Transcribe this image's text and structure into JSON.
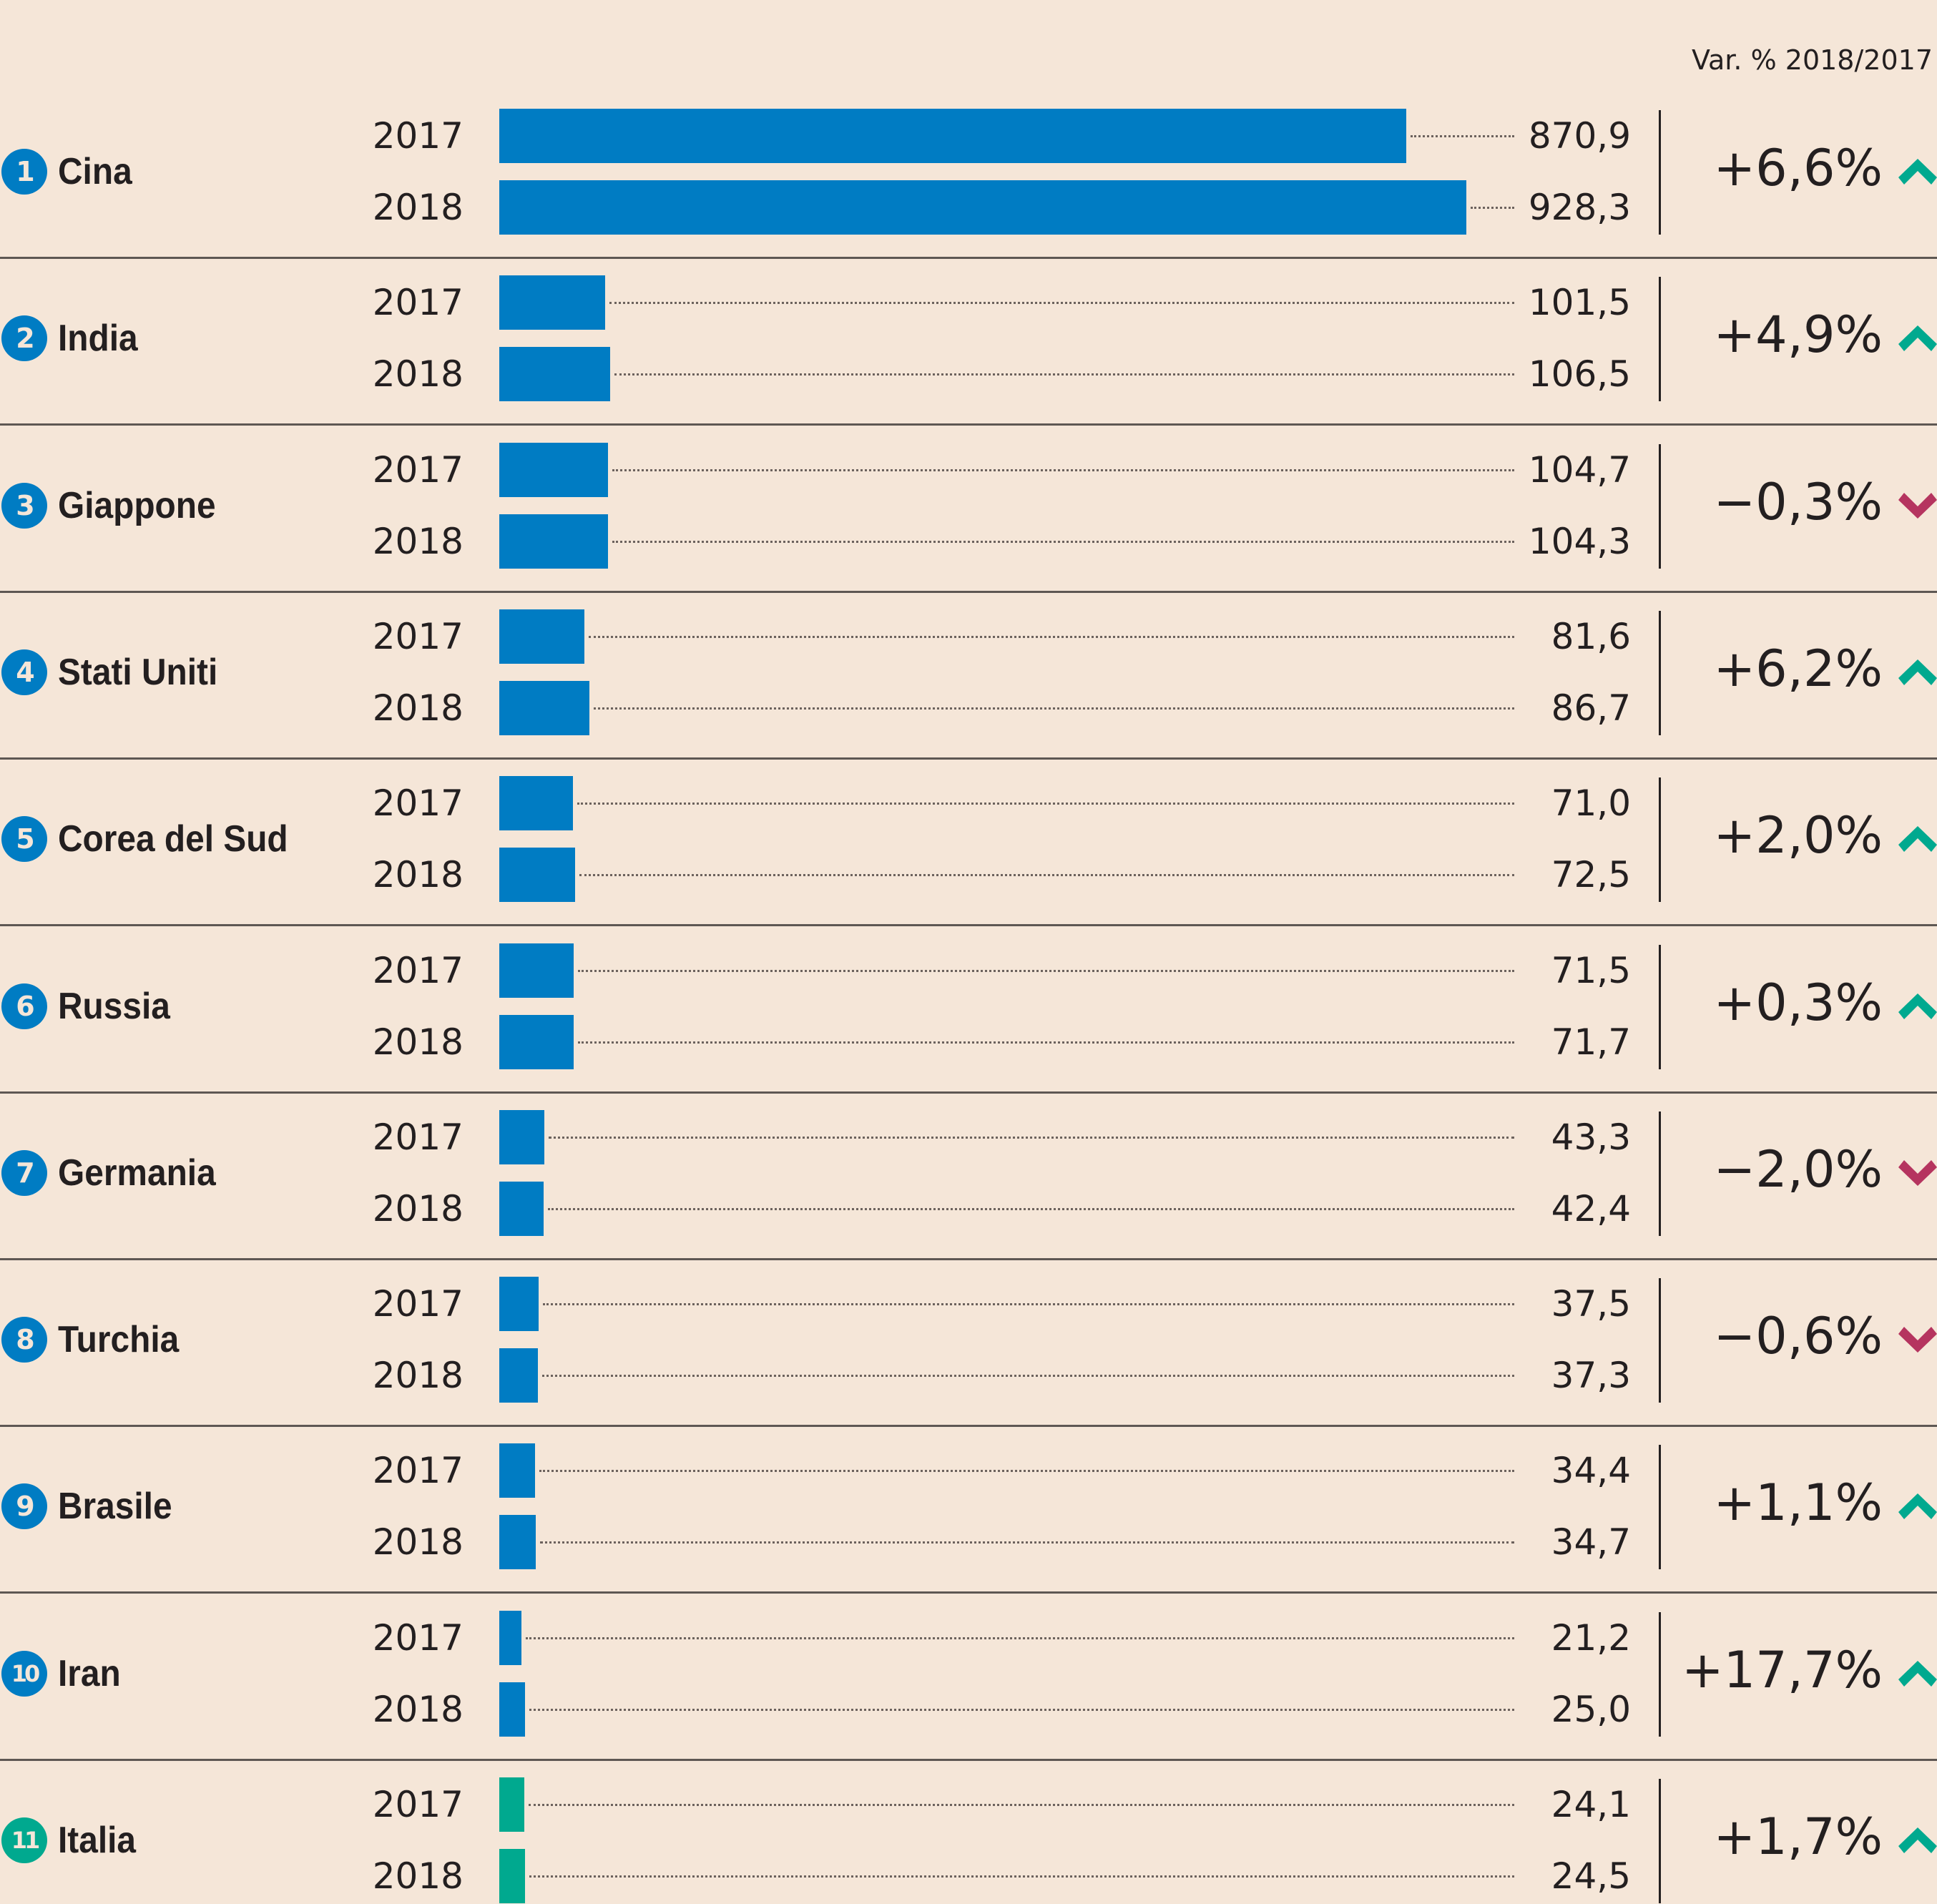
{
  "header": {
    "change_label": "Var. % 2018/2017"
  },
  "colors": {
    "background": "#F5E6D8",
    "bar_default": "#007CC3",
    "bar_highlight": "#00A98F",
    "up": "#00A98F",
    "down": "#B5345F",
    "text": "#231F20"
  },
  "chart_data": {
    "type": "bar",
    "orientation": "horizontal",
    "title": "",
    "xlabel": "",
    "ylabel": "",
    "xlim": [
      0,
      928.3
    ],
    "series_names": [
      "2017",
      "2018"
    ],
    "change_column_label": "Var. % 2018/2017",
    "rows": [
      {
        "rank": "1",
        "country": "Cina",
        "years": [
          "2017",
          "2018"
        ],
        "values": [
          870.9,
          928.3
        ],
        "labels": [
          "870,9",
          "928,3"
        ],
        "change": "+6,6%",
        "trend": "up",
        "highlight": false
      },
      {
        "rank": "2",
        "country": "India",
        "years": [
          "2017",
          "2018"
        ],
        "values": [
          101.5,
          106.5
        ],
        "labels": [
          "101,5",
          "106,5"
        ],
        "change": "+4,9%",
        "trend": "up",
        "highlight": false
      },
      {
        "rank": "3",
        "country": "Giappone",
        "years": [
          "2017",
          "2018"
        ],
        "values": [
          104.7,
          104.3
        ],
        "labels": [
          "104,7",
          "104,3"
        ],
        "change": "−0,3%",
        "trend": "down",
        "highlight": false
      },
      {
        "rank": "4",
        "country": "Stati Uniti",
        "years": [
          "2017",
          "2018"
        ],
        "values": [
          81.6,
          86.7
        ],
        "labels": [
          "81,6",
          "86,7"
        ],
        "change": "+6,2%",
        "trend": "up",
        "highlight": false
      },
      {
        "rank": "5",
        "country": "Corea del Sud",
        "years": [
          "2017",
          "2018"
        ],
        "values": [
          71.0,
          72.5
        ],
        "labels": [
          "71,0",
          "72,5"
        ],
        "change": "+2,0%",
        "trend": "up",
        "highlight": false
      },
      {
        "rank": "6",
        "country": "Russia",
        "years": [
          "2017",
          "2018"
        ],
        "values": [
          71.5,
          71.7
        ],
        "labels": [
          "71,5",
          "71,7"
        ],
        "change": "+0,3%",
        "trend": "up",
        "highlight": false
      },
      {
        "rank": "7",
        "country": "Germania",
        "years": [
          "2017",
          "2018"
        ],
        "values": [
          43.3,
          42.4
        ],
        "labels": [
          "43,3",
          "42,4"
        ],
        "change": "−2,0%",
        "trend": "down",
        "highlight": false
      },
      {
        "rank": "8",
        "country": "Turchia",
        "years": [
          "2017",
          "2018"
        ],
        "values": [
          37.5,
          37.3
        ],
        "labels": [
          "37,5",
          "37,3"
        ],
        "change": "−0,6%",
        "trend": "down",
        "highlight": false
      },
      {
        "rank": "9",
        "country": "Brasile",
        "years": [
          "2017",
          "2018"
        ],
        "values": [
          34.4,
          34.7
        ],
        "labels": [
          "34,4",
          "34,7"
        ],
        "change": "+1,1%",
        "trend": "up",
        "highlight": false
      },
      {
        "rank": "10",
        "country": "Iran",
        "years": [
          "2017",
          "2018"
        ],
        "values": [
          21.2,
          25.0
        ],
        "labels": [
          "21,2",
          "25,0"
        ],
        "change": "+17,7%",
        "trend": "up",
        "highlight": false
      },
      {
        "rank": "11",
        "country": "Italia",
        "years": [
          "2017",
          "2018"
        ],
        "values": [
          24.1,
          24.5
        ],
        "labels": [
          "24,1",
          "24,5"
        ],
        "change": "+1,7%",
        "trend": "up",
        "highlight": true
      }
    ]
  }
}
